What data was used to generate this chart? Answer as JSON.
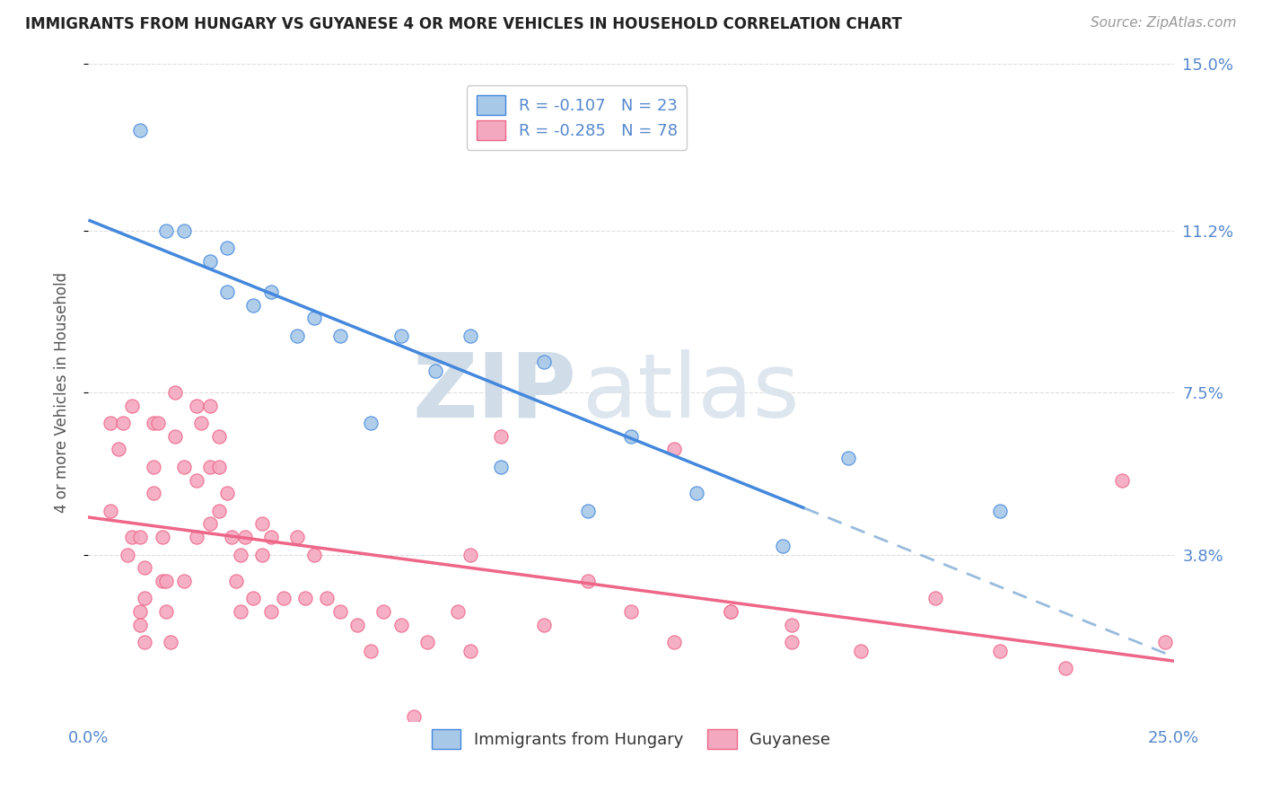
{
  "title": "IMMIGRANTS FROM HUNGARY VS GUYANESE 4 OR MORE VEHICLES IN HOUSEHOLD CORRELATION CHART",
  "source": "Source: ZipAtlas.com",
  "ylabel": "4 or more Vehicles in Household",
  "xlim": [
    0.0,
    0.25
  ],
  "ylim": [
    0.0,
    0.15
  ],
  "xticks": [
    0.0,
    0.05,
    0.1,
    0.15,
    0.2,
    0.25
  ],
  "xticklabels": [
    "0.0%",
    "",
    "",
    "",
    "",
    "25.0%"
  ],
  "ytick_positions": [
    0.038,
    0.075,
    0.112,
    0.15
  ],
  "ytick_labels": [
    "3.8%",
    "7.5%",
    "11.2%",
    "15.0%"
  ],
  "hungary_color": "#a8c8e8",
  "guyanese_color": "#f4a8c0",
  "hungary_line_color": "#4488dd",
  "guyanese_line_color": "#ee6688",
  "hungary_dash_color": "#99bbdd",
  "legend_hungary_label": "Immigrants from Hungary",
  "legend_guyanese_label": "Guyanese",
  "r_hungary": -0.107,
  "n_hungary": 23,
  "r_guyanese": -0.285,
  "n_guyanese": 78,
  "watermark_zip": "ZIP",
  "watermark_atlas": "atlas",
  "background_color": "#ffffff",
  "grid_color": "#dddddd",
  "tick_color": "#5588cc",
  "hungary_x": [
    0.012,
    0.018,
    0.022,
    0.028,
    0.032,
    0.032,
    0.038,
    0.042,
    0.048,
    0.052,
    0.058,
    0.065,
    0.072,
    0.08,
    0.088,
    0.095,
    0.105,
    0.115,
    0.125,
    0.14,
    0.16,
    0.175,
    0.21
  ],
  "hungary_y": [
    0.135,
    0.112,
    0.112,
    0.105,
    0.108,
    0.098,
    0.095,
    0.098,
    0.088,
    0.092,
    0.088,
    0.068,
    0.088,
    0.08,
    0.088,
    0.058,
    0.082,
    0.048,
    0.065,
    0.052,
    0.04,
    0.06,
    0.048
  ],
  "guyanese_x": [
    0.005,
    0.005,
    0.007,
    0.008,
    0.009,
    0.01,
    0.01,
    0.012,
    0.012,
    0.012,
    0.013,
    0.013,
    0.013,
    0.015,
    0.015,
    0.015,
    0.016,
    0.017,
    0.017,
    0.018,
    0.018,
    0.019,
    0.02,
    0.02,
    0.022,
    0.022,
    0.025,
    0.025,
    0.025,
    0.026,
    0.028,
    0.028,
    0.028,
    0.03,
    0.03,
    0.03,
    0.032,
    0.033,
    0.034,
    0.035,
    0.035,
    0.036,
    0.038,
    0.04,
    0.04,
    0.042,
    0.042,
    0.045,
    0.048,
    0.05,
    0.052,
    0.055,
    0.058,
    0.062,
    0.065,
    0.068,
    0.072,
    0.078,
    0.085,
    0.088,
    0.095,
    0.105,
    0.115,
    0.125,
    0.135,
    0.148,
    0.162,
    0.178,
    0.195,
    0.21,
    0.225,
    0.238,
    0.248,
    0.135,
    0.148,
    0.162,
    0.075,
    0.088
  ],
  "guyanese_y": [
    0.068,
    0.048,
    0.062,
    0.068,
    0.038,
    0.072,
    0.042,
    0.042,
    0.025,
    0.022,
    0.035,
    0.028,
    0.018,
    0.068,
    0.058,
    0.052,
    0.068,
    0.042,
    0.032,
    0.032,
    0.025,
    0.018,
    0.075,
    0.065,
    0.032,
    0.058,
    0.072,
    0.055,
    0.042,
    0.068,
    0.072,
    0.058,
    0.045,
    0.065,
    0.058,
    0.048,
    0.052,
    0.042,
    0.032,
    0.038,
    0.025,
    0.042,
    0.028,
    0.045,
    0.038,
    0.025,
    0.042,
    0.028,
    0.042,
    0.028,
    0.038,
    0.028,
    0.025,
    0.022,
    0.016,
    0.025,
    0.022,
    0.018,
    0.025,
    0.016,
    0.065,
    0.022,
    0.032,
    0.025,
    0.018,
    0.025,
    0.022,
    0.016,
    0.028,
    0.016,
    0.012,
    0.055,
    0.018,
    0.062,
    0.025,
    0.018,
    0.001,
    0.038
  ]
}
